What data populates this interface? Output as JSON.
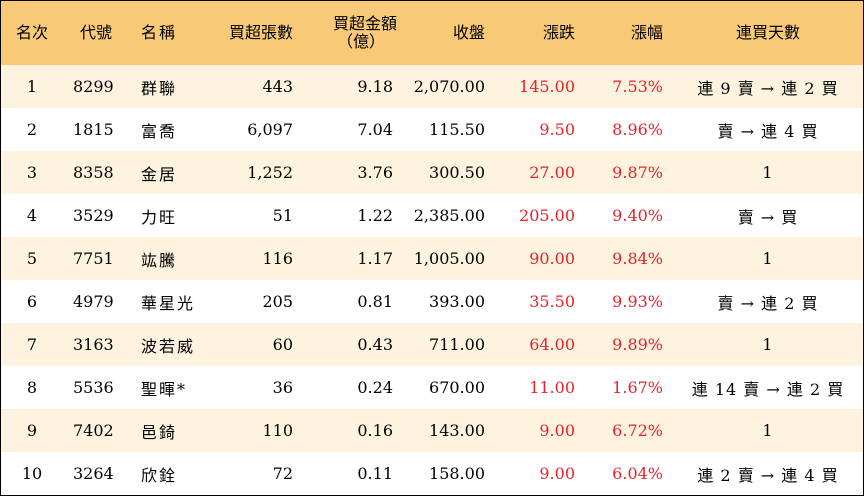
{
  "headers": {
    "rank": "名次",
    "code": "代號",
    "name": "名稱",
    "net_shares": "買超張數",
    "net_amount_line1": "買超金額",
    "net_amount_line2": "（億）",
    "close": "收盤",
    "change": "漲跌",
    "change_pct": "漲幅",
    "streak": "連買天數"
  },
  "colors": {
    "header_bg": "#f8ca78",
    "odd_row_bg": "#fdf3df",
    "even_row_bg": "#ffffff",
    "up_color": "#e8212b"
  },
  "rows": [
    {
      "rank": "1",
      "code": "8299",
      "name": "群聯",
      "net_shares": "443",
      "net_amount": "9.18",
      "close": "2,070.00",
      "change": "145.00",
      "change_pct": "7.53%",
      "streak": "連 9 賣 → 連 2 買"
    },
    {
      "rank": "2",
      "code": "1815",
      "name": "富喬",
      "net_shares": "6,097",
      "net_amount": "7.04",
      "close": "115.50",
      "change": "9.50",
      "change_pct": "8.96%",
      "streak": "賣 → 連 4 買"
    },
    {
      "rank": "3",
      "code": "8358",
      "name": "金居",
      "net_shares": "1,252",
      "net_amount": "3.76",
      "close": "300.50",
      "change": "27.00",
      "change_pct": "9.87%",
      "streak": "1"
    },
    {
      "rank": "4",
      "code": "3529",
      "name": "力旺",
      "net_shares": "51",
      "net_amount": "1.22",
      "close": "2,385.00",
      "change": "205.00",
      "change_pct": "9.40%",
      "streak": "賣 → 買"
    },
    {
      "rank": "5",
      "code": "7751",
      "name": "竑騰",
      "net_shares": "116",
      "net_amount": "1.17",
      "close": "1,005.00",
      "change": "90.00",
      "change_pct": "9.84%",
      "streak": "1"
    },
    {
      "rank": "6",
      "code": "4979",
      "name": "華星光",
      "net_shares": "205",
      "net_amount": "0.81",
      "close": "393.00",
      "change": "35.50",
      "change_pct": "9.93%",
      "streak": "賣 → 連 2 買"
    },
    {
      "rank": "7",
      "code": "3163",
      "name": "波若威",
      "net_shares": "60",
      "net_amount": "0.43",
      "close": "711.00",
      "change": "64.00",
      "change_pct": "9.89%",
      "streak": "1"
    },
    {
      "rank": "8",
      "code": "5536",
      "name": "聖暉*",
      "net_shares": "36",
      "net_amount": "0.24",
      "close": "670.00",
      "change": "11.00",
      "change_pct": "1.67%",
      "streak": "連 14 賣 → 連 2 買"
    },
    {
      "rank": "9",
      "code": "7402",
      "name": "邑錡",
      "net_shares": "110",
      "net_amount": "0.16",
      "close": "143.00",
      "change": "9.00",
      "change_pct": "6.72%",
      "streak": "1"
    },
    {
      "rank": "10",
      "code": "3264",
      "name": "欣銓",
      "net_shares": "72",
      "net_amount": "0.11",
      "close": "158.00",
      "change": "9.00",
      "change_pct": "6.04%",
      "streak": "連 2 賣 → 連 4 買"
    }
  ]
}
